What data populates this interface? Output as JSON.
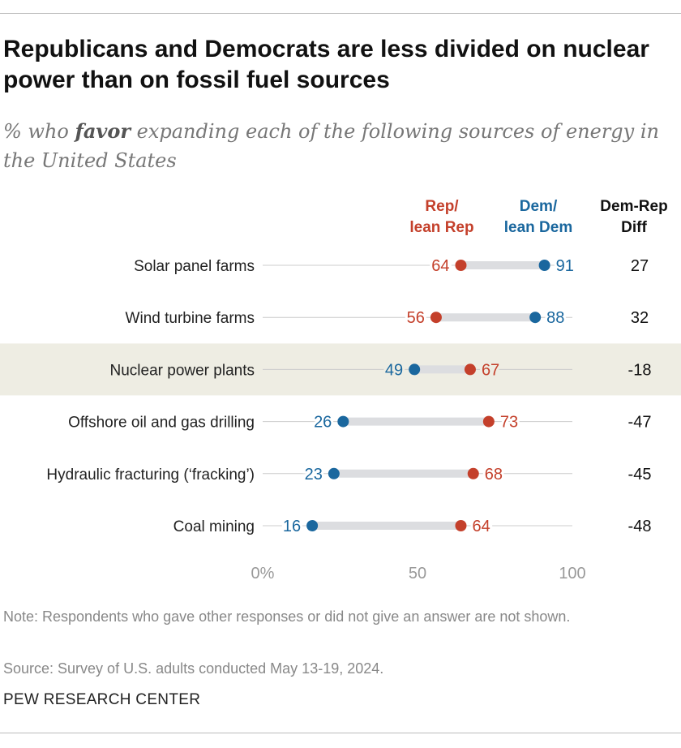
{
  "title": "Republicans and Democrats are less divided on nuclear power than on fossil fuel sources",
  "subtitle_pre": "% who ",
  "subtitle_em": "favor",
  "subtitle_post": " expanding each of the following sources of energy in the United States",
  "headers": {
    "rep": "Rep/\nlean Rep",
    "dem": "Dem/\nlean Dem",
    "diff": "Dem-Rep\nDiff"
  },
  "colors": {
    "rep": "#c4402b",
    "dem": "#1a679e",
    "highlight": "#eeede3"
  },
  "chart_data": {
    "type": "dot",
    "categories": [
      "Solar panel farms",
      "Wind turbine farms",
      "Nuclear power plants",
      "Offshore oil and gas drilling",
      "Hydraulic fracturing (‘fracking’)",
      "Coal mining"
    ],
    "series": [
      {
        "name": "Rep/lean Rep",
        "values": [
          64,
          56,
          67,
          73,
          68,
          64
        ]
      },
      {
        "name": "Dem/lean Dem",
        "values": [
          91,
          88,
          49,
          26,
          23,
          16
        ]
      }
    ],
    "diff": [
      "27",
      "32",
      "-18",
      "-47",
      "-45",
      "-48"
    ],
    "highlighted": "Nuclear power plants",
    "xlim": [
      0,
      100
    ],
    "xticks": [
      "0%",
      "50",
      "100"
    ]
  },
  "note": "Note: Respondents who gave other responses or did not give an answer are not shown.",
  "source": "Source: Survey of U.S. adults conducted May 13-19, 2024.",
  "brand": "PEW RESEARCH CENTER"
}
